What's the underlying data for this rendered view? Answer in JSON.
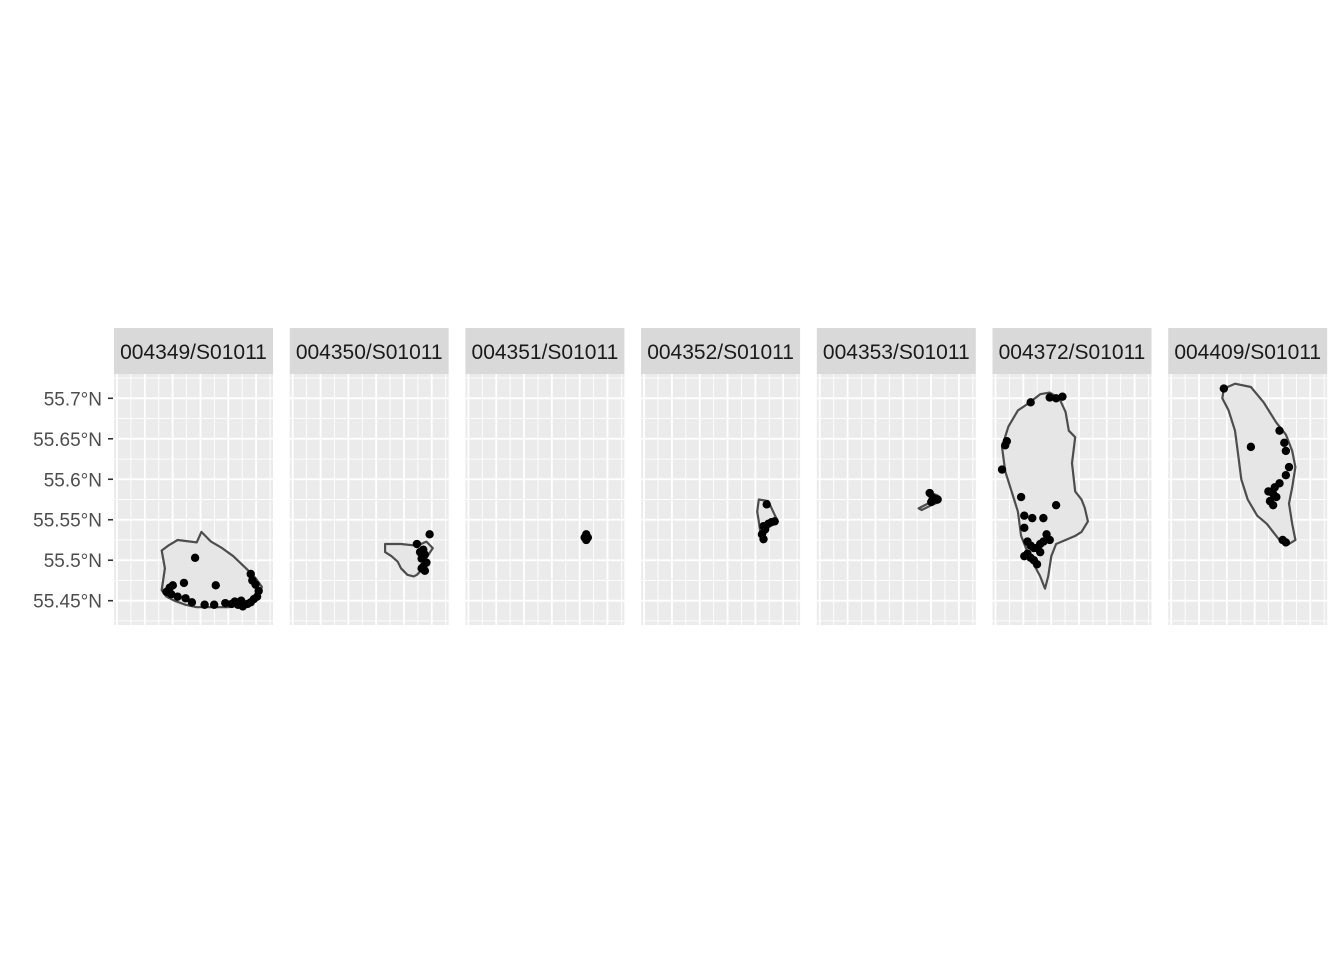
{
  "chart_data": {
    "type": "scatter",
    "subtype": "faceted map (points over island polygons)",
    "title": "",
    "xlabel": "",
    "ylabel": "",
    "ylim": [
      55.42,
      55.73
    ],
    "y_ticks": [
      55.45,
      55.5,
      55.55,
      55.6,
      55.65,
      55.7
    ],
    "y_tick_labels": [
      "55.45°N",
      "55.5°N",
      "55.55°N",
      "55.6°N",
      "55.65°N",
      "55.7°N"
    ],
    "x_tick_labels_shown": false,
    "grid": true,
    "legend": "none",
    "colors": {
      "panel_bg": "#ebebeb",
      "strip_bg": "#d9d9d9",
      "grid": "#ffffff",
      "polygon_fill": "#e6e6e6",
      "polygon_stroke": "#4d4d4d",
      "point": "#000000"
    },
    "facets": [
      {
        "label": "004349/S01011",
        "outline": [
          [
            0.3,
            55.463
          ],
          [
            0.32,
            55.49
          ],
          [
            0.3,
            55.512
          ],
          [
            0.34,
            55.518
          ],
          [
            0.4,
            55.525
          ],
          [
            0.52,
            55.522
          ],
          [
            0.55,
            55.535
          ],
          [
            0.61,
            55.523
          ],
          [
            0.68,
            55.515
          ],
          [
            0.75,
            55.505
          ],
          [
            0.83,
            55.49
          ],
          [
            0.89,
            55.478
          ],
          [
            0.93,
            55.467
          ],
          [
            0.9,
            55.452
          ],
          [
            0.82,
            55.445
          ],
          [
            0.72,
            55.442
          ],
          [
            0.62,
            55.442
          ],
          [
            0.52,
            55.442
          ],
          [
            0.45,
            55.445
          ],
          [
            0.38,
            55.45
          ],
          [
            0.33,
            55.455
          ],
          [
            0.3,
            55.463
          ]
        ],
        "points": [
          [
            0.51,
            55.503
          ],
          [
            0.44,
            55.472
          ],
          [
            0.64,
            55.469
          ],
          [
            0.35,
            55.466
          ],
          [
            0.37,
            55.469
          ],
          [
            0.33,
            55.461
          ],
          [
            0.36,
            55.458
          ],
          [
            0.4,
            55.455
          ],
          [
            0.45,
            55.453
          ],
          [
            0.49,
            55.448
          ],
          [
            0.57,
            55.445
          ],
          [
            0.63,
            55.445
          ],
          [
            0.7,
            55.447
          ],
          [
            0.74,
            55.446
          ],
          [
            0.78,
            55.445
          ],
          [
            0.81,
            55.443
          ],
          [
            0.84,
            55.446
          ],
          [
            0.86,
            55.448
          ],
          [
            0.88,
            55.452
          ],
          [
            0.9,
            55.455
          ],
          [
            0.91,
            55.462
          ],
          [
            0.89,
            55.47
          ],
          [
            0.87,
            55.475
          ],
          [
            0.86,
            55.483
          ],
          [
            0.76,
            55.449
          ],
          [
            0.8,
            55.45
          ]
        ]
      },
      {
        "label": "004350/S01011",
        "outline": [
          [
            0.6,
            55.52
          ],
          [
            0.7,
            55.52
          ],
          [
            0.8,
            55.518
          ],
          [
            0.86,
            55.523
          ],
          [
            0.9,
            55.515
          ],
          [
            0.86,
            55.503
          ],
          [
            0.84,
            55.49
          ],
          [
            0.8,
            55.482
          ],
          [
            0.78,
            55.48
          ],
          [
            0.74,
            55.482
          ],
          [
            0.7,
            55.49
          ],
          [
            0.68,
            55.498
          ],
          [
            0.64,
            55.505
          ],
          [
            0.6,
            55.51
          ],
          [
            0.6,
            55.52
          ]
        ],
        "points": [
          [
            0.8,
            55.52
          ],
          [
            0.88,
            55.532
          ],
          [
            0.84,
            55.513
          ],
          [
            0.85,
            55.507
          ],
          [
            0.83,
            55.502
          ],
          [
            0.86,
            55.497
          ],
          [
            0.84,
            55.492
          ],
          [
            0.85,
            55.487
          ],
          [
            0.82,
            55.51
          ],
          [
            0.83,
            55.49
          ]
        ]
      },
      {
        "label": "004351/S01011",
        "outline": [],
        "points": [
          [
            0.76,
            55.532
          ],
          [
            0.75,
            55.528
          ],
          [
            0.77,
            55.528
          ],
          [
            0.76,
            55.525
          ]
        ]
      },
      {
        "label": "004352/S01011",
        "outline": [
          [
            0.74,
            55.575
          ],
          [
            0.8,
            55.573
          ],
          [
            0.83,
            55.56
          ],
          [
            0.86,
            55.548
          ],
          [
            0.82,
            55.545
          ],
          [
            0.8,
            55.54
          ],
          [
            0.78,
            55.532
          ],
          [
            0.76,
            55.528
          ],
          [
            0.75,
            55.535
          ],
          [
            0.74,
            55.548
          ],
          [
            0.73,
            55.56
          ],
          [
            0.74,
            55.575
          ]
        ],
        "points": [
          [
            0.79,
            55.569
          ],
          [
            0.77,
            55.542
          ],
          [
            0.8,
            55.545
          ],
          [
            0.82,
            55.547
          ],
          [
            0.84,
            55.548
          ],
          [
            0.78,
            55.538
          ],
          [
            0.76,
            55.532
          ],
          [
            0.77,
            55.526
          ]
        ]
      },
      {
        "label": "004353/S01011",
        "outline": [
          [
            0.64,
            55.564
          ],
          [
            0.7,
            55.57
          ],
          [
            0.72,
            55.583
          ],
          [
            0.76,
            55.58
          ],
          [
            0.77,
            55.572
          ],
          [
            0.72,
            55.568
          ],
          [
            0.66,
            55.562
          ],
          [
            0.64,
            55.564
          ]
        ],
        "points": [
          [
            0.71,
            55.583
          ],
          [
            0.73,
            55.577
          ],
          [
            0.75,
            55.575
          ],
          [
            0.76,
            55.575
          ],
          [
            0.72,
            55.572
          ]
        ]
      },
      {
        "label": "004372/S01011",
        "outline": [
          [
            0.22,
            55.693
          ],
          [
            0.3,
            55.705
          ],
          [
            0.36,
            55.707
          ],
          [
            0.42,
            55.7
          ],
          [
            0.46,
            55.683
          ],
          [
            0.48,
            55.66
          ],
          [
            0.52,
            55.652
          ],
          [
            0.5,
            55.62
          ],
          [
            0.52,
            55.585
          ],
          [
            0.56,
            55.575
          ],
          [
            0.58,
            55.565
          ],
          [
            0.6,
            55.548
          ],
          [
            0.56,
            55.535
          ],
          [
            0.52,
            55.53
          ],
          [
            0.46,
            55.525
          ],
          [
            0.4,
            55.52
          ],
          [
            0.37,
            55.505
          ],
          [
            0.35,
            55.48
          ],
          [
            0.33,
            55.465
          ],
          [
            0.3,
            55.48
          ],
          [
            0.26,
            55.495
          ],
          [
            0.22,
            55.51
          ],
          [
            0.18,
            55.53
          ],
          [
            0.16,
            55.56
          ],
          [
            0.12,
            55.585
          ],
          [
            0.08,
            55.61
          ],
          [
            0.06,
            55.64
          ],
          [
            0.1,
            55.665
          ],
          [
            0.16,
            55.685
          ],
          [
            0.22,
            55.693
          ]
        ],
        "points": [
          [
            0.24,
            55.695
          ],
          [
            0.36,
            55.701
          ],
          [
            0.4,
            55.7
          ],
          [
            0.44,
            55.702
          ],
          [
            0.09,
            55.647
          ],
          [
            0.08,
            55.642
          ],
          [
            0.06,
            55.612
          ],
          [
            0.18,
            55.578
          ],
          [
            0.2,
            55.555
          ],
          [
            0.25,
            55.552
          ],
          [
            0.32,
            55.552
          ],
          [
            0.4,
            55.568
          ],
          [
            0.2,
            55.54
          ],
          [
            0.22,
            55.523
          ],
          [
            0.24,
            55.518
          ],
          [
            0.26,
            55.515
          ],
          [
            0.28,
            55.515
          ],
          [
            0.3,
            55.52
          ],
          [
            0.32,
            55.523
          ],
          [
            0.34,
            55.532
          ],
          [
            0.36,
            55.525
          ],
          [
            0.22,
            55.508
          ],
          [
            0.24,
            55.503
          ],
          [
            0.26,
            55.5
          ],
          [
            0.28,
            55.495
          ],
          [
            0.3,
            55.51
          ],
          [
            0.2,
            55.505
          ]
        ]
      },
      {
        "label": "004409/S01011",
        "outline": [
          [
            0.35,
            55.712
          ],
          [
            0.42,
            55.718
          ],
          [
            0.52,
            55.714
          ],
          [
            0.6,
            55.695
          ],
          [
            0.68,
            55.67
          ],
          [
            0.74,
            55.655
          ],
          [
            0.78,
            55.635
          ],
          [
            0.8,
            55.615
          ],
          [
            0.78,
            55.59
          ],
          [
            0.76,
            55.57
          ],
          [
            0.78,
            55.545
          ],
          [
            0.8,
            55.525
          ],
          [
            0.76,
            55.52
          ],
          [
            0.7,
            55.525
          ],
          [
            0.66,
            55.535
          ],
          [
            0.62,
            55.545
          ],
          [
            0.56,
            55.555
          ],
          [
            0.5,
            55.575
          ],
          [
            0.46,
            55.6
          ],
          [
            0.44,
            55.63
          ],
          [
            0.42,
            55.66
          ],
          [
            0.38,
            55.685
          ],
          [
            0.34,
            55.7
          ],
          [
            0.35,
            55.712
          ]
        ],
        "points": [
          [
            0.35,
            55.712
          ],
          [
            0.52,
            55.64
          ],
          [
            0.7,
            55.66
          ],
          [
            0.73,
            55.645
          ],
          [
            0.74,
            55.635
          ],
          [
            0.76,
            55.615
          ],
          [
            0.74,
            55.605
          ],
          [
            0.7,
            55.595
          ],
          [
            0.67,
            55.59
          ],
          [
            0.63,
            55.585
          ],
          [
            0.66,
            55.582
          ],
          [
            0.68,
            55.578
          ],
          [
            0.64,
            55.573
          ],
          [
            0.66,
            55.568
          ],
          [
            0.72,
            55.525
          ],
          [
            0.74,
            55.522
          ]
        ]
      }
    ]
  }
}
